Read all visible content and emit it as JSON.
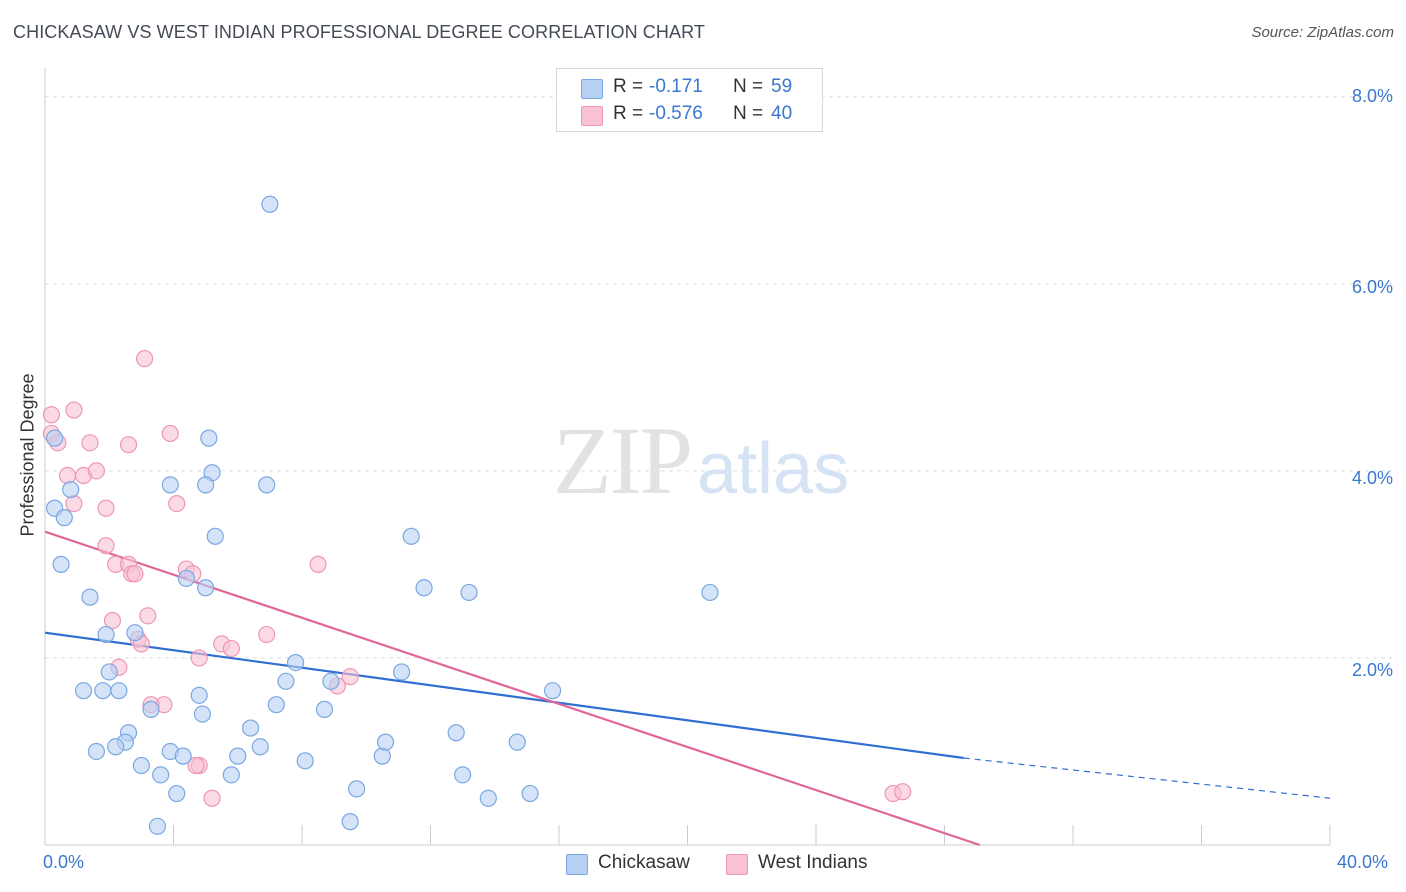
{
  "header": {
    "title": "CHICKASAW VS WEST INDIAN PROFESSIONAL DEGREE CORRELATION CHART",
    "source": "Source: ZipAtlas.com"
  },
  "watermark": {
    "zip": "ZIP",
    "atlas": "atlas"
  },
  "legend": {
    "rows": [
      {
        "r_label": "R =",
        "r_value": "-0.171",
        "n_label": "N =",
        "n_value": "59",
        "color": "#b7d1f4"
      },
      {
        "r_label": "R =",
        "r_value": "-0.576",
        "n_label": "N =",
        "n_value": "40",
        "color": "#f9c2d3"
      }
    ]
  },
  "bottom_legend": [
    {
      "label": "Chickasaw",
      "color": "#b7d1f4"
    },
    {
      "label": "West Indians",
      "color": "#f9c2d3"
    }
  ],
  "axes": {
    "ylabel": "Professional Degree",
    "y_ticks": [
      "2.0%",
      "4.0%",
      "6.0%",
      "8.0%"
    ],
    "x_ticks": [
      "0.0%",
      "40.0%"
    ]
  },
  "colors": {
    "chickasaw_fill": "#b7d1f4",
    "chickasaw_stroke": "#7aa8e2",
    "chickasaw_line": "#2f6fd1",
    "westindian_fill": "#f9c2d3",
    "westindian_stroke": "#ee97b3",
    "westindian_line": "#e0669a",
    "grid": "#dddddd",
    "axis_text": "#3a78d0"
  },
  "chart_data": {
    "type": "scatter",
    "title": "CHICKASAW VS WEST INDIAN PROFESSIONAL DEGREE CORRELATION CHART",
    "xlabel": "",
    "ylabel": "Professional Degree",
    "xlim": [
      0,
      40
    ],
    "ylim": [
      0,
      8.2
    ],
    "grid": true,
    "legend_position": "top-center",
    "series": [
      {
        "name": "Chickasaw",
        "r": -0.171,
        "n": 59,
        "points": [
          [
            0.3,
            4.35
          ],
          [
            0.3,
            3.6
          ],
          [
            0.6,
            3.5
          ],
          [
            0.8,
            3.8
          ],
          [
            0.5,
            3.0
          ],
          [
            1.4,
            2.65
          ],
          [
            1.9,
            2.25
          ],
          [
            2.8,
            2.27
          ],
          [
            1.2,
            1.65
          ],
          [
            1.8,
            1.65
          ],
          [
            2.3,
            1.65
          ],
          [
            2.0,
            1.85
          ],
          [
            3.3,
            1.45
          ],
          [
            2.6,
            1.2
          ],
          [
            2.5,
            1.1
          ],
          [
            2.2,
            1.05
          ],
          [
            1.6,
            1.0
          ],
          [
            3.0,
            0.85
          ],
          [
            3.6,
            0.75
          ],
          [
            3.9,
            1.0
          ],
          [
            4.3,
            0.95
          ],
          [
            4.1,
            0.55
          ],
          [
            3.5,
            0.2
          ],
          [
            3.9,
            3.85
          ],
          [
            5.1,
            4.35
          ],
          [
            5.3,
            3.3
          ],
          [
            5.2,
            3.98
          ],
          [
            5.0,
            3.85
          ],
          [
            4.4,
            2.85
          ],
          [
            5.0,
            2.75
          ],
          [
            4.8,
            1.6
          ],
          [
            4.9,
            1.4
          ],
          [
            5.8,
            0.75
          ],
          [
            6.0,
            0.95
          ],
          [
            6.4,
            1.25
          ],
          [
            6.7,
            1.05
          ],
          [
            7.2,
            1.5
          ],
          [
            7.5,
            1.75
          ],
          [
            7.8,
            1.95
          ],
          [
            8.1,
            0.9
          ],
          [
            8.7,
            1.45
          ],
          [
            8.9,
            1.75
          ],
          [
            9.5,
            0.25
          ],
          [
            9.7,
            0.6
          ],
          [
            10.5,
            0.95
          ],
          [
            10.6,
            1.1
          ],
          [
            11.1,
            1.85
          ],
          [
            11.4,
            3.3
          ],
          [
            11.8,
            2.75
          ],
          [
            12.8,
            1.2
          ],
          [
            13.0,
            0.75
          ],
          [
            13.2,
            2.7
          ],
          [
            13.8,
            0.5
          ],
          [
            14.7,
            1.1
          ],
          [
            15.1,
            0.55
          ],
          [
            15.8,
            1.65
          ],
          [
            6.9,
            3.85
          ],
          [
            7.0,
            6.85
          ],
          [
            20.7,
            2.7
          ]
        ]
      },
      {
        "name": "West Indians",
        "r": -0.576,
        "n": 40,
        "points": [
          [
            0.2,
            4.6
          ],
          [
            0.2,
            4.4
          ],
          [
            0.4,
            4.3
          ],
          [
            0.7,
            3.95
          ],
          [
            0.9,
            3.65
          ],
          [
            0.9,
            4.65
          ],
          [
            1.2,
            3.95
          ],
          [
            1.4,
            4.3
          ],
          [
            1.6,
            4.0
          ],
          [
            1.9,
            3.6
          ],
          [
            1.9,
            3.2
          ],
          [
            2.2,
            3.0
          ],
          [
            2.6,
            3.0
          ],
          [
            2.7,
            2.9
          ],
          [
            2.8,
            2.9
          ],
          [
            2.1,
            2.4
          ],
          [
            2.6,
            4.28
          ],
          [
            2.9,
            2.2
          ],
          [
            3.0,
            2.15
          ],
          [
            3.2,
            2.45
          ],
          [
            2.3,
            1.9
          ],
          [
            3.7,
            1.5
          ],
          [
            3.3,
            1.5
          ],
          [
            3.1,
            5.2
          ],
          [
            3.9,
            4.4
          ],
          [
            4.1,
            3.65
          ],
          [
            4.4,
            2.95
          ],
          [
            4.6,
            2.9
          ],
          [
            4.8,
            2.0
          ],
          [
            4.8,
            0.85
          ],
          [
            5.2,
            0.5
          ],
          [
            5.5,
            2.15
          ],
          [
            5.8,
            2.1
          ],
          [
            6.9,
            2.25
          ],
          [
            8.5,
            3.0
          ],
          [
            9.1,
            1.7
          ],
          [
            9.5,
            1.8
          ],
          [
            26.4,
            0.55
          ],
          [
            26.7,
            0.57
          ],
          [
            4.7,
            0.85
          ]
        ]
      }
    ],
    "trend_lines": [
      {
        "series": "Chickasaw",
        "solid": [
          [
            0,
            2.27
          ],
          [
            28.6,
            0.93
          ]
        ],
        "dashed": [
          [
            28.6,
            0.93
          ],
          [
            40,
            0.5
          ]
        ]
      },
      {
        "series": "West Indians",
        "solid": [
          [
            0,
            3.35
          ],
          [
            29.1,
            0.0
          ]
        ]
      }
    ]
  }
}
